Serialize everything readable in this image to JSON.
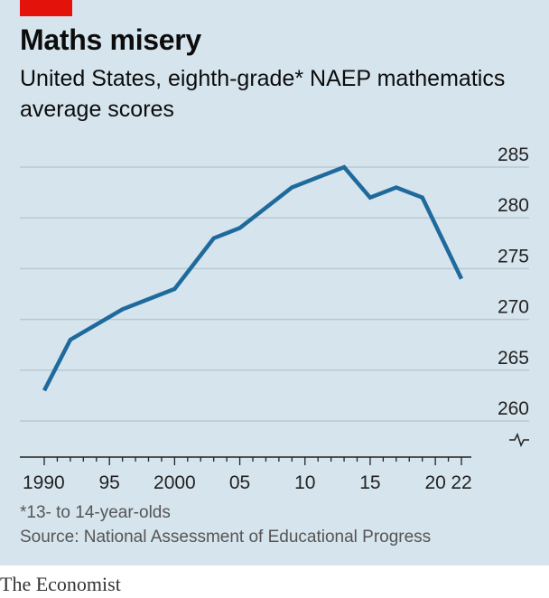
{
  "title": "Maths misery",
  "subtitle": "United States, eighth-grade* NAEP mathematics average scores",
  "footnote": "*13- to 14-year-olds",
  "source": "Source: National Assessment of Educational Progress",
  "brand": "The Economist",
  "colors": {
    "line": "#1f6a9c",
    "background": "#d6e4ed",
    "accent": "#e3120b",
    "grid": "#b9c8d2"
  },
  "chart_data": {
    "type": "line",
    "title": "Maths misery",
    "xlabel": "",
    "ylabel": "",
    "xlim": [
      1990,
      2022
    ],
    "ylim": [
      260,
      285
    ],
    "yticks": [
      260,
      265,
      270,
      275,
      280,
      285
    ],
    "ytick_labels": [
      "260",
      "265",
      "270",
      "275",
      "280",
      "285"
    ],
    "xticks": [
      1990,
      1995,
      2000,
      2005,
      2010,
      2015,
      2020,
      2022
    ],
    "xtick_labels": [
      "1990",
      "95",
      "2000",
      "05",
      "10",
      "15",
      "20",
      "22"
    ],
    "grid": true,
    "axis_break": true,
    "series": [
      {
        "x": [
          1990,
          1992,
          1996,
          2000,
          2003,
          2005,
          2007,
          2009,
          2011,
          2013,
          2015,
          2017,
          2019,
          2022
        ],
        "y": [
          263,
          268,
          271,
          273,
          278,
          279,
          281,
          283,
          284,
          285,
          282,
          283,
          282,
          274
        ]
      }
    ]
  }
}
